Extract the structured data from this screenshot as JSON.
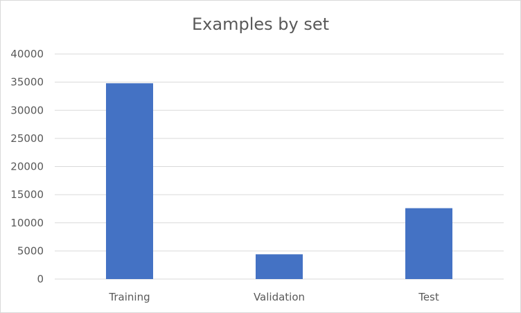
{
  "chart_data": {
    "type": "bar",
    "title": "Examples by set",
    "categories": [
      "Training",
      "Validation",
      "Test"
    ],
    "values": [
      34800,
      4400,
      12600
    ],
    "ylim": [
      0,
      40000
    ],
    "yticks": [
      "0",
      "5000",
      "10000",
      "15000",
      "20000",
      "25000",
      "30000",
      "35000",
      "40000"
    ],
    "grid": true,
    "legend": "none",
    "xlabel": "",
    "ylabel": "",
    "bar_color": "#4472c4"
  }
}
